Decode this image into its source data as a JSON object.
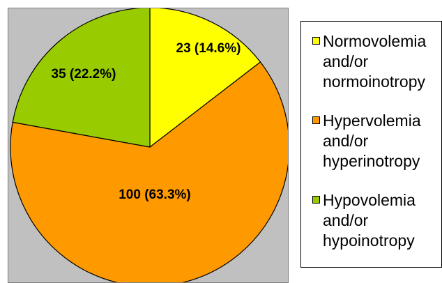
{
  "chart_data": {
    "type": "pie",
    "slices": [
      {
        "label": "Normovolemia and/or normoinotropy",
        "value": 23,
        "percent": 14.6,
        "display": "23 (14.6%)",
        "color": "#ffff00"
      },
      {
        "label": "Hypervolemia and/or hyperinotropy",
        "value": 100,
        "percent": 63.3,
        "display": "100 (63.3%)",
        "color": "#ff9900"
      },
      {
        "label": "Hypovolemia and/or hypoinotropy",
        "value": 35,
        "percent": 22.2,
        "display": "35 (22.2%)",
        "color": "#99cc00"
      }
    ],
    "legend": {
      "placement": "right",
      "entries": [
        {
          "text": "Normovolemia\nand/or\nnormoinotropy",
          "color": "#ffff00"
        },
        {
          "text": "Hypervolemia\nand/or\nhyperinotropy",
          "color": "#ff9900"
        },
        {
          "text": "Hypovolemia\nand/or\nhypoinotropy",
          "color": "#99cc00"
        }
      ]
    }
  }
}
